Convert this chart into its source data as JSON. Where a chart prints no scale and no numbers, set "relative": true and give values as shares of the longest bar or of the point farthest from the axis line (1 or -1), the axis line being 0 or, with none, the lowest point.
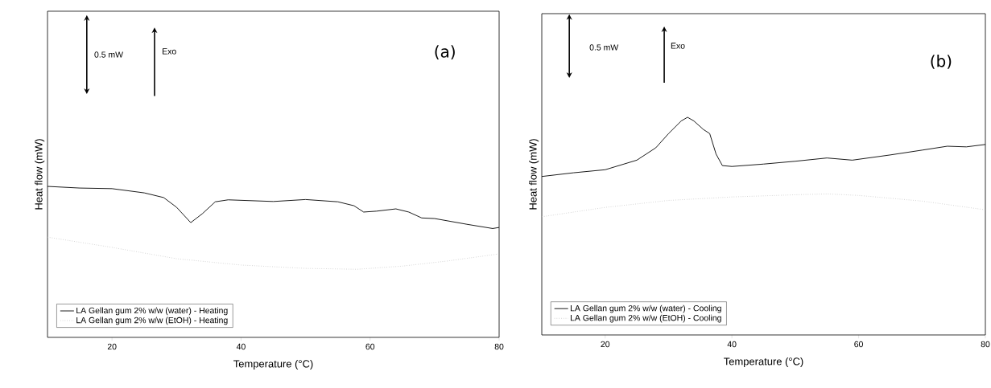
{
  "chart_data": [
    {
      "type": "line",
      "xlabel": "Temperature (°C)",
      "ylabel": "Heat flow (mW)",
      "xlim": [
        10,
        80
      ],
      "xticks": [
        20,
        40,
        60,
        80
      ],
      "relative": true,
      "legend": "bottom left",
      "marker": "none",
      "annotations": [
        "0.5 mW",
        "Exo",
        "(a)"
      ],
      "series": [
        {
          "name": "LA Gellan gum 2% w/w (water) - Heating",
          "color": "#000000",
          "line_style": "solid",
          "x": [
            10,
            15,
            20,
            25,
            28,
            30,
            32.2,
            34,
            36,
            38,
            45,
            50,
            55,
            57.5,
            59,
            61,
            64,
            66,
            68,
            70,
            75,
            79,
            80
          ],
          "values": [
            1.0,
            0.989,
            0.985,
            0.957,
            0.926,
            0.862,
            0.76,
            0.819,
            0.898,
            0.911,
            0.9,
            0.913,
            0.898,
            0.872,
            0.83,
            0.836,
            0.851,
            0.83,
            0.791,
            0.787,
            0.749,
            0.721,
            0.728
          ]
        },
        {
          "name": "LA Gellan gum 2% w/w (EtOH) - Heating",
          "color": "#c0c0c0",
          "line_style": "dotted",
          "x": [
            10,
            20,
            30,
            40,
            50,
            58,
            65,
            72,
            80
          ],
          "values": [
            0.664,
            0.596,
            0.521,
            0.479,
            0.457,
            0.451,
            0.472,
            0.506,
            0.553
          ]
        }
      ]
    },
    {
      "type": "line",
      "xlabel": "Temperature (°C)",
      "ylabel": "Heat flow (mW)",
      "xlim": [
        10,
        80
      ],
      "xticks": [
        20,
        40,
        60,
        80
      ],
      "relative": true,
      "legend": "bottom left",
      "marker": "none",
      "annotations": [
        "0.5 mW",
        "Exo",
        "(b)"
      ],
      "series": [
        {
          "name": "LA Gellan gum 2% w/w (water) - Cooling",
          "color": "#000000",
          "line_style": "solid",
          "x": [
            10,
            15,
            20,
            25,
            28,
            30,
            32,
            33,
            34,
            35.5,
            36.5,
            37.5,
            38.5,
            40,
            45,
            50,
            55,
            59,
            65,
            70,
            74,
            77,
            80
          ],
          "values": [
            0.728,
            0.745,
            0.759,
            0.803,
            0.86,
            0.925,
            0.983,
            1.0,
            0.983,
            0.944,
            0.925,
            0.831,
            0.778,
            0.774,
            0.785,
            0.798,
            0.813,
            0.803,
            0.827,
            0.849,
            0.867,
            0.864,
            0.875
          ]
        },
        {
          "name": "LA Gellan gum 2% w/w (EtOH) - Cooling",
          "color": "#c0c0c0",
          "line_style": "dotted",
          "x": [
            10,
            20,
            30,
            40,
            50,
            55,
            60,
            70,
            80
          ],
          "values": [
            0.543,
            0.586,
            0.618,
            0.634,
            0.644,
            0.648,
            0.641,
            0.615,
            0.575
          ]
        }
      ]
    }
  ]
}
